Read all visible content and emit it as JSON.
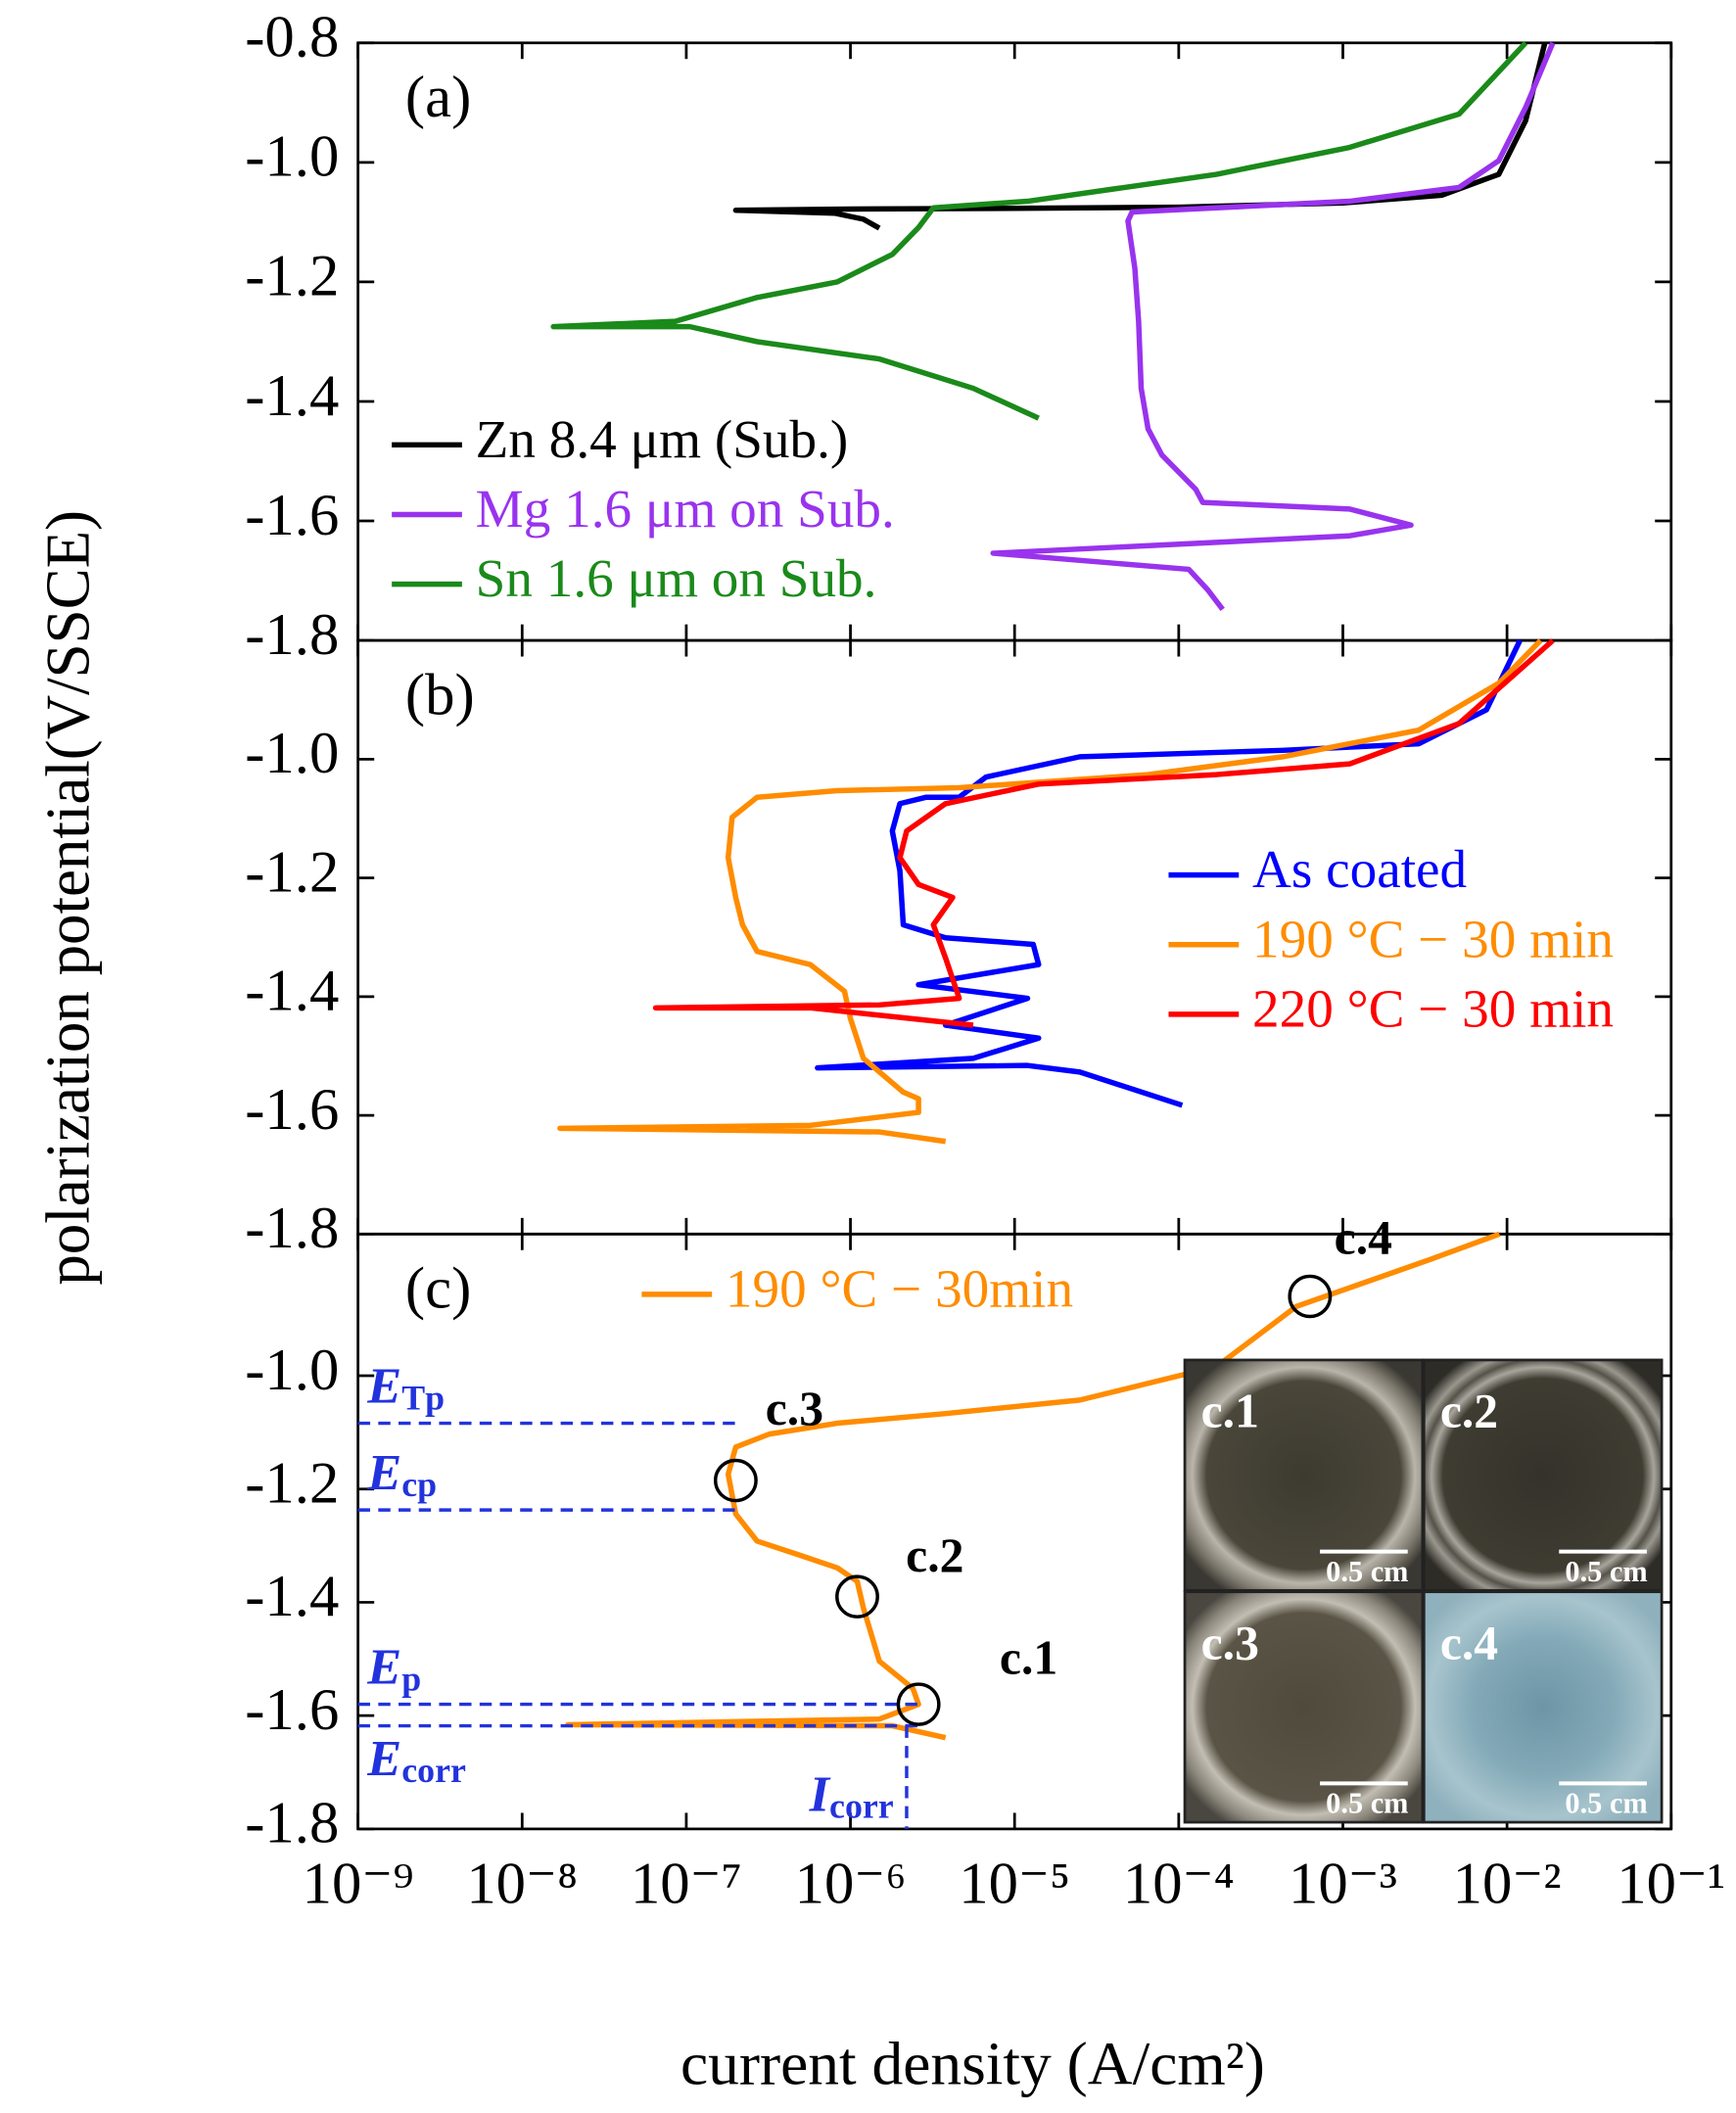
{
  "chart_data": [
    {
      "type": "line",
      "label": "(a)",
      "xscale": "log",
      "xlim": [
        1e-09,
        0.1
      ],
      "ylim": [
        -1.8,
        -0.8
      ],
      "yticks": [
        -1.8,
        -1.6,
        -1.4,
        -1.2,
        {
          "value": -1,
          "label": "-1.0"
        },
        -0.8
      ],
      "legend": "lower left",
      "series": [
        {
          "name": "Zn 8.4 μm (Sub.)",
          "color": "#000000",
          "x": [
            1.5e-06,
            1.2e-06,
            8e-07,
            2e-07,
            1e-06,
            1e-05,
            0.0001,
            0.001,
            0.004,
            0.0089,
            0.013,
            0.017
          ],
          "values": [
            -1.11,
            -1.095,
            -1.085,
            -1.08,
            -1.078,
            -1.077,
            -1.075,
            -1.068,
            -1.055,
            -1.02,
            -0.93,
            -0.8
          ]
        },
        {
          "name": "Mg 1.6 μm on Sub.",
          "color": "#9933ee",
          "x": [
            0.000185,
            0.00015,
            0.000115,
            7.4e-06,
            0.0011,
            0.0026,
            0.0011,
            0.00014,
            0.000127,
            7.9e-05,
            6.5e-05,
            5.9e-05,
            5.7e-05,
            5.4e-05,
            4.9e-05,
            5.2e-05,
            0.00017,
            0.0011,
            0.0051,
            0.0089,
            0.013,
            0.019
          ],
          "values": [
            -1.748,
            -1.715,
            -1.681,
            -1.654,
            -1.625,
            -1.607,
            -1.58,
            -1.569,
            -1.547,
            -1.49,
            -1.446,
            -1.378,
            -1.266,
            -1.177,
            -1.098,
            -1.083,
            -1.076,
            -1.065,
            -1.042,
            -0.997,
            -0.908,
            -0.8
          ]
        },
        {
          "name": "Sn 1.6 μm on Sub.",
          "color": "#1a8a1a",
          "x": [
            1.4e-05,
            5.6e-06,
            1.5e-06,
            2.7e-07,
            1.05e-07,
            1.55e-08,
            8.6e-08,
            2.7e-07,
            8.3e-07,
            1.8e-06,
            2.6e-06,
            3.2e-06,
            1.2e-05,
            0.00017,
            0.0011,
            0.0051,
            0.013
          ],
          "values": [
            -1.428,
            -1.378,
            -1.329,
            -1.3,
            -1.275,
            -1.275,
            -1.266,
            -1.226,
            -1.2,
            -1.154,
            -1.109,
            -1.076,
            -1.065,
            -1.02,
            -0.975,
            -0.919,
            -0.8
          ]
        }
      ]
    },
    {
      "type": "line",
      "label": "(b)",
      "xscale": "log",
      "xlim": [
        1e-09,
        0.1
      ],
      "ylim": [
        -1.8,
        -0.8
      ],
      "yticks": [
        -1.8,
        -1.6,
        -1.4,
        -1.2,
        {
          "value": -1,
          "label": "-1.0"
        }
      ],
      "ylabel": "polarization  potential(V/SSCE)",
      "legend": "center right",
      "series": [
        {
          "name": "As coated",
          "color": "#0000ff",
          "x": [
            0.000105,
            2.5e-05,
            1.2e-05,
            6.3e-07,
            5.6e-06,
            1.4e-05,
            3.8e-06,
            1.2e-05,
            2.6e-06,
            1.4e-05,
            1.3e-05,
            3.8e-06,
            2.1e-06,
            2e-06,
            1.8e-06,
            2e-06,
            2.9e-06,
            4.6e-06,
            6.7e-06,
            2.5e-05,
            0.00043,
            0.0029,
            0.0075,
            0.012
          ],
          "values": [
            -1.583,
            -1.527,
            -1.516,
            -1.52,
            -1.504,
            -1.47,
            -1.448,
            -1.403,
            -1.38,
            -1.346,
            -1.312,
            -1.301,
            -1.279,
            -1.188,
            -1.121,
            -1.075,
            -1.064,
            -1.064,
            -1.03,
            -0.996,
            -0.985,
            -0.974,
            -0.917,
            -0.8
          ]
        },
        {
          "name": "190 °C − 30 min",
          "color": "#ff8c00",
          "x": [
            3.8e-06,
            1.5e-06,
            1.7e-08,
            5.7e-07,
            2.6e-06,
            2.6e-06,
            2.1e-06,
            1.2e-06,
            1e-06,
            9.2e-07,
            5.7e-07,
            2.7e-07,
            2.2e-07,
            2e-07,
            1.8e-07,
            1.9e-07,
            2.7e-07,
            8.3e-07,
            4.6e-06,
            6.5e-05,
            0.00043,
            0.0029,
            0.0089,
            0.016
          ],
          "values": [
            -1.644,
            -1.628,
            -1.622,
            -1.617,
            -1.595,
            -1.572,
            -1.561,
            -1.504,
            -1.437,
            -1.391,
            -1.346,
            -1.324,
            -1.279,
            -1.233,
            -1.166,
            -1.098,
            -1.064,
            -1.053,
            -1.048,
            -1.026,
            -0.996,
            -0.951,
            -0.872,
            -0.8
          ]
        },
        {
          "name": "220 °C − 30 min",
          "color": "#ff0000",
          "x": [
            5.6e-06,
            5.7e-07,
            6.5e-08,
            1.5e-06,
            4.6e-06,
            3.8e-06,
            3.2e-06,
            4.2e-06,
            2.6e-06,
            2e-06,
            2.2e-06,
            3.8e-06,
            1.4e-05,
            0.00017,
            0.0011,
            0.0051,
            0.019
          ],
          "values": [
            -1.448,
            -1.419,
            -1.419,
            -1.414,
            -1.403,
            -1.335,
            -1.279,
            -1.233,
            -1.211,
            -1.166,
            -1.121,
            -1.075,
            -1.042,
            -1.026,
            -1.008,
            -0.94,
            -0.8
          ]
        }
      ]
    },
    {
      "type": "line",
      "label": "(c)",
      "xscale": "log",
      "xlim": [
        1e-09,
        0.1
      ],
      "ylim": [
        -1.8,
        -0.75
      ],
      "yticks": [
        -1.8,
        -1.6,
        -1.4,
        -1.2,
        {
          "value": -1,
          "label": "-1.0"
        }
      ],
      "xticks": [
        {
          "value": 1e-09,
          "label": "10⁻⁹"
        },
        {
          "value": 1e-08,
          "label": "10⁻⁸"
        },
        {
          "value": 1e-07,
          "label": "10⁻⁷"
        },
        {
          "value": 1e-06,
          "label": "10⁻⁶"
        },
        {
          "value": 1e-05,
          "label": "10⁻⁵"
        },
        {
          "value": 0.0001,
          "label": "10⁻⁴"
        },
        {
          "value": 0.001,
          "label": "10⁻³"
        },
        {
          "value": 0.01,
          "label": "10⁻²"
        },
        {
          "value": 0.1,
          "label": "10⁻¹"
        }
      ],
      "xlabel": "current  density  (A/cm²)",
      "legend": "upper center",
      "series": [
        {
          "name": "190 °C − 30min",
          "color": "#ff8c00",
          "x": [
            3.8e-06,
            1.8e-06,
            1.9e-08,
            1.5e-06,
            2.6e-06,
            2.4e-06,
            1.5e-06,
            1.2e-06,
            1.1e-06,
            8.3e-07,
            4.7e-07,
            2.7e-07,
            2e-07,
            1.8e-07,
            2e-07,
            3.2e-07,
            8.3e-07,
            3.8e-06,
            2.5e-05,
            0.00017,
            0.00052,
            0.0034,
            0.009
          ],
          "values": [
            -1.639,
            -1.618,
            -1.616,
            -1.606,
            -1.58,
            -1.552,
            -1.504,
            -1.41,
            -1.363,
            -1.339,
            -1.315,
            -1.292,
            -1.244,
            -1.174,
            -1.126,
            -1.103,
            -1.084,
            -1.067,
            -1.043,
            -0.984,
            -0.878,
            -0.795,
            -0.75
          ]
        }
      ],
      "annotation_color": "#2233dd",
      "points": [
        {
          "label": "c.1",
          "x": 2.6e-06,
          "y": -1.58
        },
        {
          "label": "c.2",
          "x": 1.1e-06,
          "y": -1.39
        },
        {
          "label": "c.3",
          "x": 2e-07,
          "y": -1.185
        },
        {
          "label": "c.4",
          "x": 0.00063,
          "y": -0.86
        }
      ],
      "levels": [
        {
          "symbol": "E",
          "sub": "Tp",
          "x": 2e-07,
          "y": -1.084
        },
        {
          "symbol": "E",
          "sub": "cp",
          "x": 2e-07,
          "y": -1.237
        },
        {
          "symbol": "E",
          "sub": "p",
          "x": 2.6e-06,
          "y": -1.58
        },
        {
          "symbol": "E",
          "sub": "corr",
          "x": 2.6e-06,
          "y": -1.618
        }
      ],
      "current": {
        "symbol": "I",
        "sub": "corr",
        "x": 2.2e-06,
        "y": -1.618
      },
      "insets": [
        {
          "label": "c.1",
          "scale": "0.5 cm"
        },
        {
          "label": "c.2",
          "scale": "0.5 cm"
        },
        {
          "label": "c.3",
          "scale": "0.5 cm"
        },
        {
          "label": "c.4",
          "scale": "0.5 cm"
        }
      ]
    }
  ]
}
